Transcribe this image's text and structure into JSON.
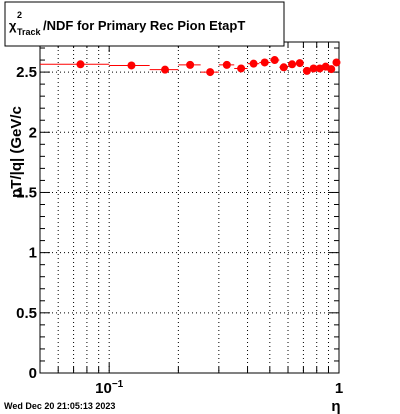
{
  "chart_data": {
    "type": "scatter",
    "title": "/NDF for Primary Rec Pion EtapT",
    "title_symbol": "χ",
    "title_superscript": "2",
    "title_subscript": "Track",
    "ylabel": "pT/|q| (GeV/c",
    "xlabel": "η",
    "x_scale": "log",
    "xlim": [
      0.05,
      1.0
    ],
    "ylim": [
      0,
      2.75
    ],
    "grid": true,
    "grid_style": "dotted",
    "y_ticks": [
      {
        "value": 0,
        "label": "0"
      },
      {
        "value": 0.5,
        "label": "0.5"
      },
      {
        "value": 1,
        "label": "1"
      },
      {
        "value": 1.5,
        "label": "1.5"
      },
      {
        "value": 2,
        "label": "2"
      },
      {
        "value": 2.5,
        "label": "2.5"
      }
    ],
    "x_tick_labels": [
      {
        "value": 0.1,
        "base": "10",
        "exp": "−1"
      },
      {
        "value": 1,
        "base": "1",
        "exp": ""
      }
    ],
    "marker_color": "#ff0000",
    "series": [
      {
        "points": [
          {
            "x": 0.075,
            "y": 2.565,
            "xlow": 0.05,
            "xhigh": 0.1
          },
          {
            "x": 0.125,
            "y": 2.555,
            "xlow": 0.1,
            "xhigh": 0.15
          },
          {
            "x": 0.175,
            "y": 2.52,
            "xlow": 0.15,
            "xhigh": 0.2
          },
          {
            "x": 0.225,
            "y": 2.56,
            "xlow": 0.2,
            "xhigh": 0.25
          },
          {
            "x": 0.275,
            "y": 2.5,
            "xlow": 0.25,
            "xhigh": 0.3
          },
          {
            "x": 0.325,
            "y": 2.56,
            "xlow": 0.3,
            "xhigh": 0.35
          },
          {
            "x": 0.375,
            "y": 2.53,
            "xlow": 0.35,
            "xhigh": 0.4
          },
          {
            "x": 0.425,
            "y": 2.57,
            "xlow": 0.4,
            "xhigh": 0.45
          },
          {
            "x": 0.475,
            "y": 2.58,
            "xlow": 0.45,
            "xhigh": 0.5
          },
          {
            "x": 0.525,
            "y": 2.6,
            "xlow": 0.5,
            "xhigh": 0.55
          },
          {
            "x": 0.575,
            "y": 2.54,
            "xlow": 0.55,
            "xhigh": 0.6
          },
          {
            "x": 0.625,
            "y": 2.565,
            "xlow": 0.6,
            "xhigh": 0.65
          },
          {
            "x": 0.675,
            "y": 2.575,
            "xlow": 0.65,
            "xhigh": 0.7
          },
          {
            "x": 0.725,
            "y": 2.51,
            "xlow": 0.7,
            "xhigh": 0.75
          },
          {
            "x": 0.775,
            "y": 2.53,
            "xlow": 0.75,
            "xhigh": 0.8
          },
          {
            "x": 0.825,
            "y": 2.53,
            "xlow": 0.8,
            "xhigh": 0.85
          },
          {
            "x": 0.875,
            "y": 2.545,
            "xlow": 0.85,
            "xhigh": 0.9
          },
          {
            "x": 0.925,
            "y": 2.525,
            "xlow": 0.9,
            "xhigh": 0.95
          },
          {
            "x": 0.975,
            "y": 2.58,
            "xlow": 0.95,
            "xhigh": 1.0
          }
        ]
      }
    ]
  },
  "footer": {
    "timestamp": "Wed Dec 20 21:05:13 2023"
  }
}
